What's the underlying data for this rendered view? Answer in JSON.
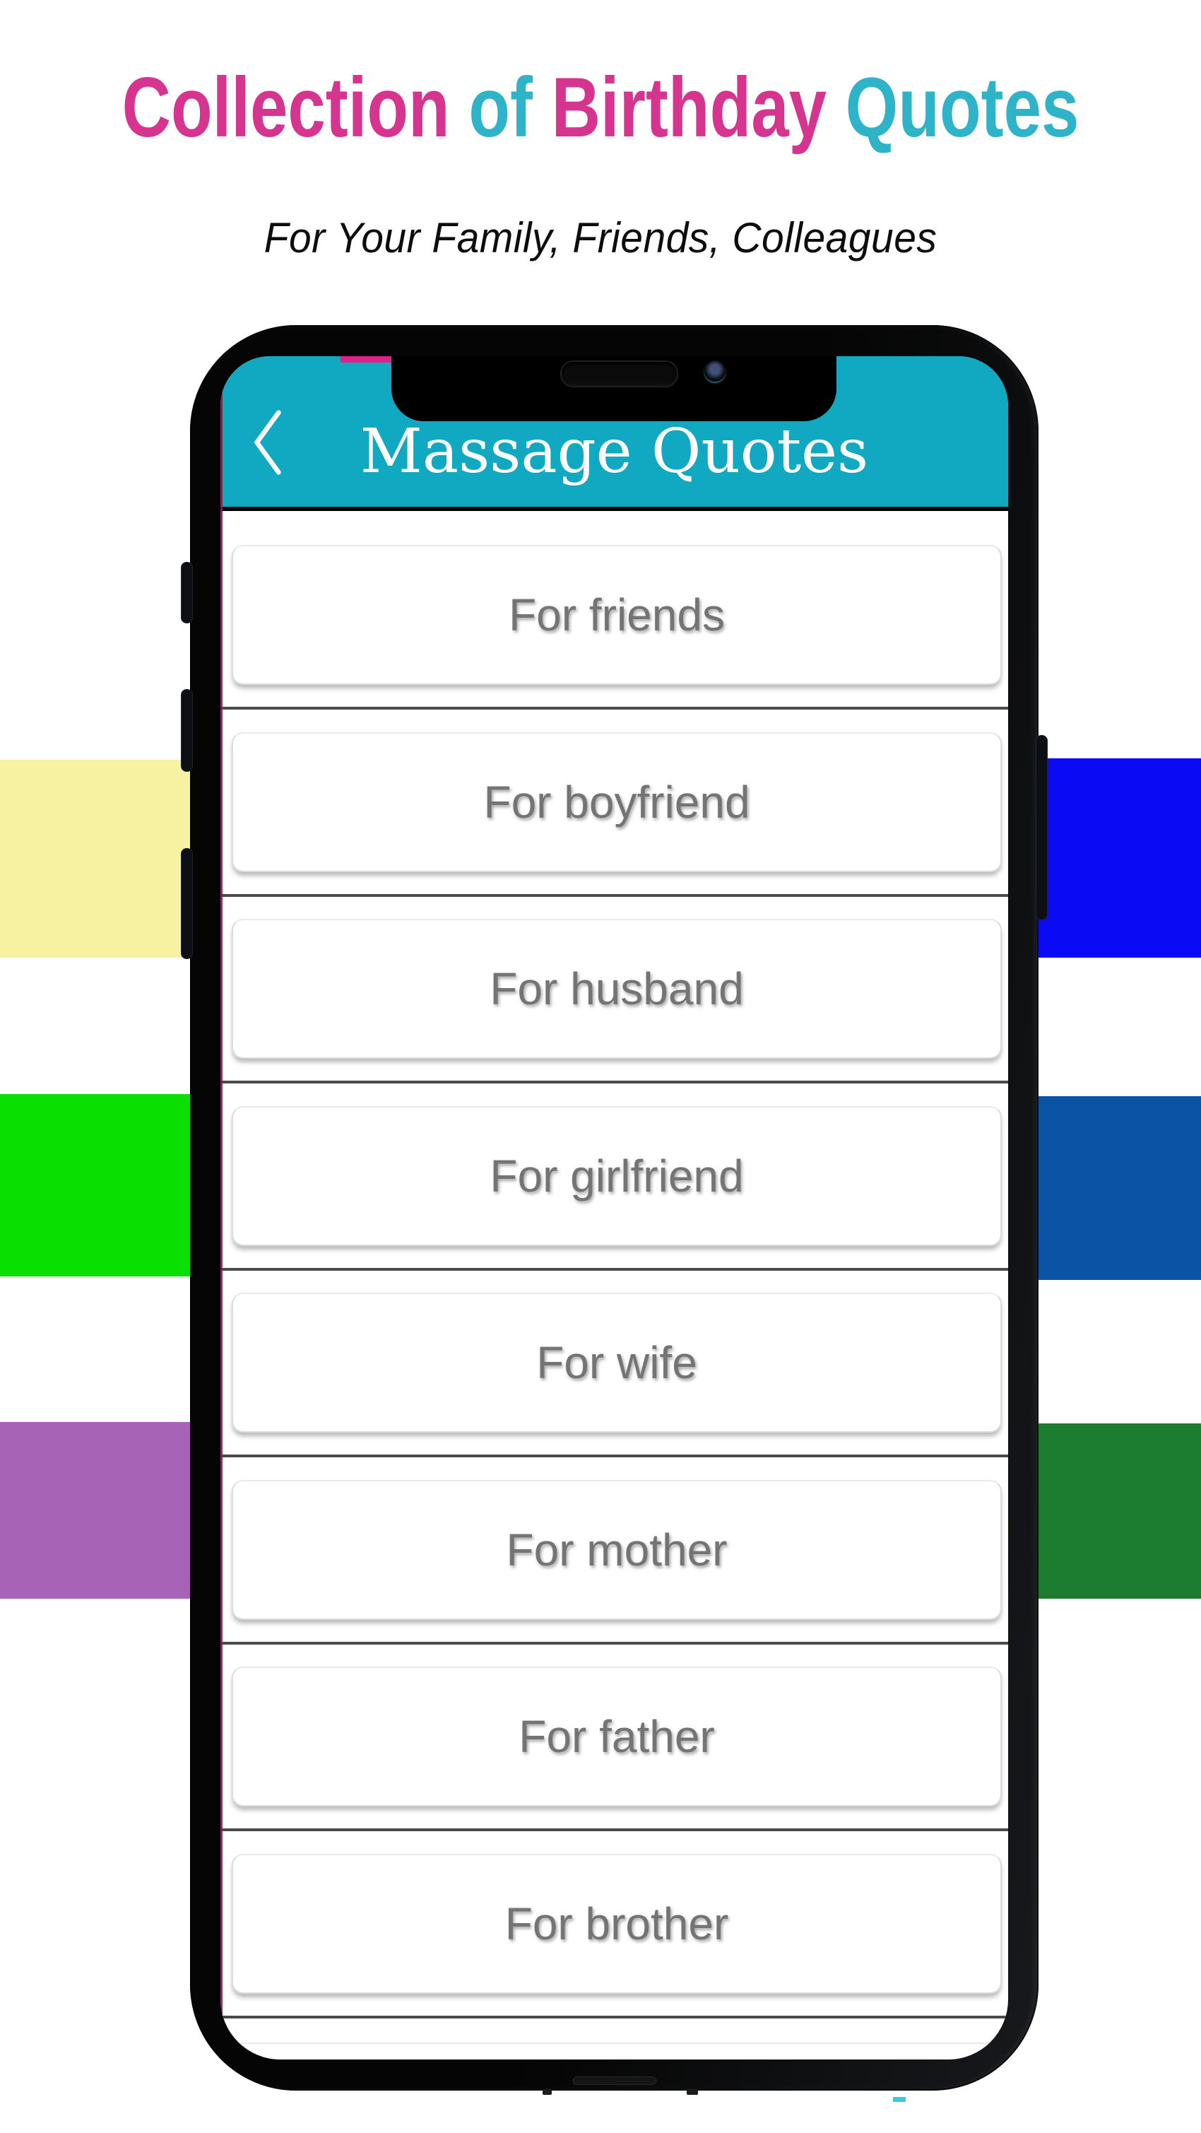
{
  "banner": {
    "heading_segments": [
      {
        "text": "Collection ",
        "color": "#D5358F"
      },
      {
        "text": "of ",
        "color": "#2FB3C9"
      },
      {
        "text": "Birthday ",
        "color": "#D5358F"
      },
      {
        "text": "Quotes",
        "color": "#2FB3C9"
      }
    ],
    "subtitle": "For Your Family, Friends, Colleagues"
  },
  "app": {
    "header": {
      "title": "Massage Quotes",
      "bg_color": "#10A9C1",
      "back_icon": "chevron-left-icon"
    },
    "menu_items": [
      {
        "label": "For friends"
      },
      {
        "label": "For boyfriend"
      },
      {
        "label": "For husband"
      },
      {
        "label": "For girlfriend"
      },
      {
        "label": "For wife"
      },
      {
        "label": "For mother"
      },
      {
        "label": "For father"
      },
      {
        "label": "For brother"
      }
    ]
  },
  "decor": {
    "left_bars": [
      {
        "name": "yellow-bar",
        "color": "#F6F2A2"
      },
      {
        "name": "green-bar",
        "color": "#09DF00"
      },
      {
        "name": "purple-bar",
        "color": "#A763B5"
      }
    ],
    "right_bars": [
      {
        "name": "blue-bar",
        "color": "#0A0AF5"
      },
      {
        "name": "dark-blue-bar",
        "color": "#0B53A4"
      },
      {
        "name": "dark-green-bar",
        "color": "#1C7D31"
      }
    ],
    "bottom_dash_color": "#3BCADD"
  }
}
